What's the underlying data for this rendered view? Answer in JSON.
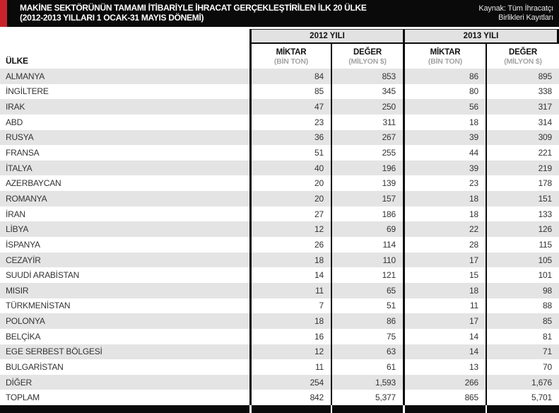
{
  "header": {
    "title_line1": "MAKİNE SEKTÖRÜNÜN TAMAMI İTİBARİYLE İHRACAT GERÇEKLEŞTİRİLEN İLK 20 ÜLKE",
    "title_line2": "(2012-2013 YILLARI 1 OCAK-31 MAYIS DÖNEMİ)",
    "source_line1": "Kaynak: Tüm İhracatçı",
    "source_line2": "Birlikleri Kayıtları"
  },
  "colors": {
    "accent_red": "#c8232c",
    "masthead_black": "#0a0a0a",
    "row_alt_gray": "#e4e4e4",
    "year_header_gray": "#e2e2e2",
    "divider_black": "#0b0b0b",
    "unit_text_gray": "#a3a3a3",
    "body_text": "#333333"
  },
  "table": {
    "country_header": "ÜLKE",
    "year_groups": [
      {
        "label": "2012 YILI"
      },
      {
        "label": "2013 YILI"
      }
    ],
    "sub_headers": [
      {
        "label": "MİKTAR",
        "unit": "(BİN TON)"
      },
      {
        "label": "DEĞER",
        "unit": "(MİLYON $)"
      },
      {
        "label": "MİKTAR",
        "unit": "(BİN TON)"
      },
      {
        "label": "DEĞER",
        "unit": "(MİLYON $)"
      }
    ],
    "rows": [
      {
        "country": "ALMANYA",
        "values": [
          "84",
          "853",
          "86",
          "895"
        ]
      },
      {
        "country": "İNGİLTERE",
        "values": [
          "85",
          "345",
          "80",
          "338"
        ]
      },
      {
        "country": "IRAK",
        "values": [
          "47",
          "250",
          "56",
          "317"
        ]
      },
      {
        "country": "ABD",
        "values": [
          "23",
          "311",
          "18",
          "314"
        ]
      },
      {
        "country": "RUSYA",
        "values": [
          "36",
          "267",
          "39",
          "309"
        ]
      },
      {
        "country": "FRANSA",
        "values": [
          "51",
          "255",
          "44",
          "221"
        ]
      },
      {
        "country": "İTALYA",
        "values": [
          "40",
          "196",
          "39",
          "219"
        ]
      },
      {
        "country": "AZERBAYCAN",
        "values": [
          "20",
          "139",
          "23",
          "178"
        ]
      },
      {
        "country": "ROMANYA",
        "values": [
          "20",
          "157",
          "18",
          "151"
        ]
      },
      {
        "country": "İRAN",
        "values": [
          "27",
          "186",
          "18",
          "133"
        ]
      },
      {
        "country": "LİBYA",
        "values": [
          "12",
          "69",
          "22",
          "126"
        ]
      },
      {
        "country": "İSPANYA",
        "values": [
          "26",
          "114",
          "28",
          "115"
        ]
      },
      {
        "country": "CEZAYİR",
        "values": [
          "18",
          "110",
          "17",
          "105"
        ]
      },
      {
        "country": "SUUDİ ARABİSTAN",
        "values": [
          "14",
          "121",
          "15",
          "101"
        ]
      },
      {
        "country": "MISIR",
        "values": [
          "11",
          "65",
          "18",
          "98"
        ]
      },
      {
        "country": "TÜRKMENİSTAN",
        "values": [
          "7",
          "51",
          "11",
          "88"
        ]
      },
      {
        "country": "POLONYA",
        "values": [
          "18",
          "86",
          "17",
          "85"
        ]
      },
      {
        "country": "BELÇİKA",
        "values": [
          "16",
          "75",
          "14",
          "81"
        ]
      },
      {
        "country": "EGE SERBEST BÖLGESİ",
        "values": [
          "12",
          "63",
          "14",
          "71"
        ]
      },
      {
        "country": "BULGARİSTAN",
        "values": [
          "11",
          "61",
          "13",
          "70"
        ]
      },
      {
        "country": "DİĞER",
        "values": [
          "254",
          "1,593",
          "266",
          "1,676"
        ]
      },
      {
        "country": "TOPLAM",
        "values": [
          "842",
          "5,377",
          "865",
          "5,701"
        ]
      }
    ]
  }
}
